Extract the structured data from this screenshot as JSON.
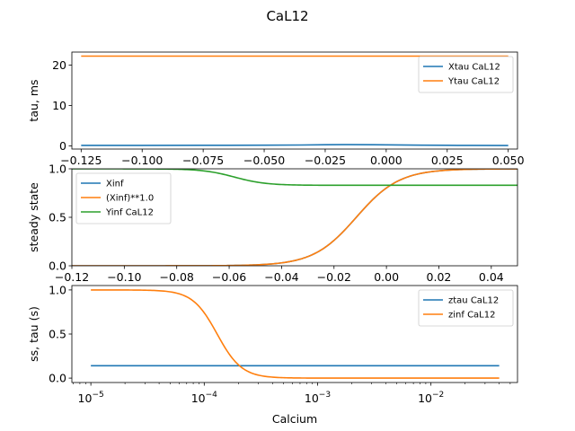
{
  "figure": {
    "title": "CaL12"
  },
  "chart_data": [
    {
      "type": "line",
      "title": "",
      "xlabel": "",
      "ylabel": "tau, ms",
      "xlim": [
        -0.1288,
        0.0538
      ],
      "ylim": [
        -0.8,
        23.2
      ],
      "xticks": [
        -0.125,
        -0.1,
        -0.075,
        -0.05,
        -0.025,
        0.0,
        0.025,
        0.05
      ],
      "xtick_labels": [
        "−0.125",
        "−0.100",
        "−0.075",
        "−0.050",
        "−0.025",
        "0.000",
        "0.025",
        "0.050"
      ],
      "yticks": [
        0,
        10,
        20
      ],
      "ytick_labels": [
        "0",
        "10",
        "20"
      ],
      "legend_position": "top-right",
      "series": [
        {
          "name": "Xtau CaL12",
          "color": "#1f77b4",
          "x": [
            -0.125,
            -0.1,
            -0.075,
            -0.05,
            -0.035,
            -0.025,
            -0.015,
            -0.005,
            0.005,
            0.015,
            0.025,
            0.035,
            0.05
          ],
          "y": [
            0.1,
            0.1,
            0.12,
            0.15,
            0.2,
            0.26,
            0.3,
            0.28,
            0.22,
            0.16,
            0.12,
            0.1,
            0.08
          ]
        },
        {
          "name": "Ytau CaL12",
          "color": "#ff7f0e",
          "x": [
            -0.125,
            0.05
          ],
          "y": [
            22.2,
            22.2
          ]
        }
      ]
    },
    {
      "type": "line",
      "title": "",
      "xlabel": "",
      "ylabel": "steady state",
      "xlim": [
        -0.12,
        0.05
      ],
      "ylim": [
        0,
        1.0
      ],
      "xticks": [
        -0.12,
        -0.1,
        -0.08,
        -0.06,
        -0.04,
        -0.02,
        0.0,
        0.02,
        0.04
      ],
      "xtick_labels": [
        "−0.12",
        "−0.10",
        "−0.08",
        "−0.06",
        "−0.04",
        "−0.02",
        "0.00",
        "0.02",
        "0.04"
      ],
      "yticks": [
        0,
        0.5,
        1.0
      ],
      "ytick_labels": [
        "0.0",
        "0.5",
        "1.0"
      ],
      "legend_position": "top-left",
      "series": [
        {
          "name": "Xinf",
          "color": "#1f77b4",
          "model": {
            "form": "sigmoid",
            "v_half": -0.0115,
            "slope": 0.0082,
            "floor": 0,
            "amplitude": 1
          }
        },
        {
          "name": "(Xinf)**1.0",
          "color": "#ff7f0e",
          "model": {
            "form": "sigmoid",
            "v_half": -0.0115,
            "slope": 0.0082,
            "floor": 0,
            "amplitude": 1
          }
        },
        {
          "name": "Yinf CaL12",
          "color": "#2ca02c",
          "model": {
            "form": "inverse-sigmoid",
            "v_half": -0.058,
            "slope": 0.006,
            "floor": 0.83,
            "amplitude": 0.17
          }
        }
      ]
    },
    {
      "type": "line",
      "title": "",
      "xlabel": "Calcium",
      "ylabel": "ss, tau (s)",
      "xscale": "log",
      "xlim": [
        6.8e-06,
        0.058
      ],
      "ylim": [
        -0.05,
        1.05
      ],
      "xticks": [
        1e-05,
        0.0001,
        0.001,
        0.01
      ],
      "xtick_labels": [
        [
          "10",
          "−5"
        ],
        [
          "10",
          "−4"
        ],
        [
          "10",
          "−3"
        ],
        [
          "10",
          "−2"
        ]
      ],
      "yticks": [
        0,
        0.5,
        1.0
      ],
      "ytick_labels": [
        "0.0",
        "0.5",
        "1.0"
      ],
      "legend_position": "top-right",
      "series": [
        {
          "name": "ztau CaL12",
          "color": "#1f77b4",
          "x": [
            1e-05,
            0.04
          ],
          "y": [
            0.14,
            0.14
          ]
        },
        {
          "name": "zinf CaL12",
          "color": "#ff7f0e",
          "model": {
            "form": "hill-decay",
            "k_half": 0.00013,
            "hill": 4,
            "floor": 0.0,
            "amplitude": 1.0
          },
          "x_range": [
            1e-05,
            0.04
          ]
        }
      ]
    }
  ]
}
